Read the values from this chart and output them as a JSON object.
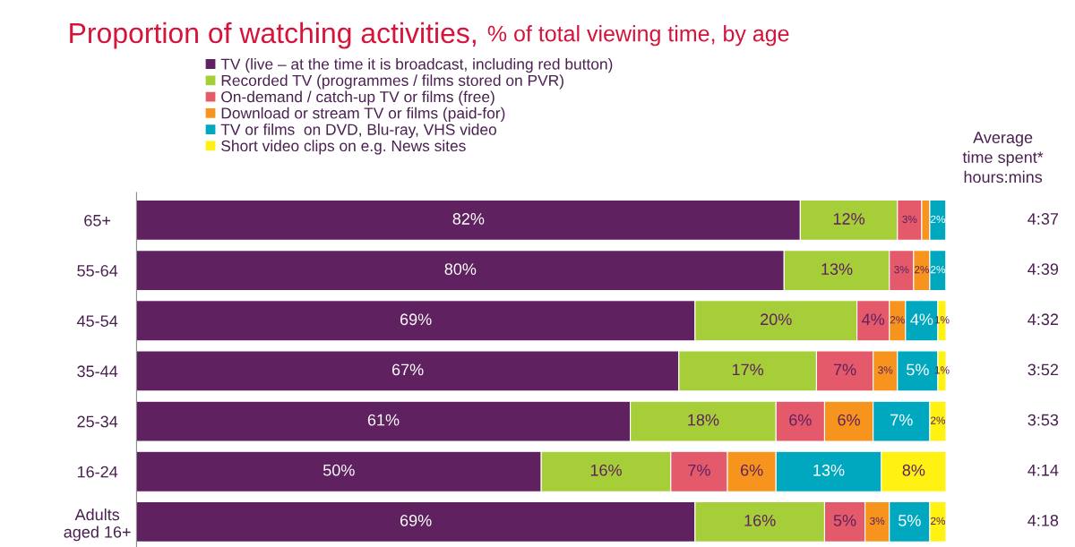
{
  "chart_data": {
    "type": "bar",
    "orientation": "horizontal",
    "stacked": true,
    "legend": "top",
    "grid": false,
    "tick_labels": "y",
    "title": "Proportion of watching activities,",
    "subtitle": "% of total viewing time, by age",
    "categories": [
      "65+",
      "55-64",
      "45-54",
      "35-44",
      "25-34",
      "16-24",
      "Adults\naged 16+"
    ],
    "series": [
      {
        "name": "TV (live – at the time it is broadcast, including red button)",
        "color": "#5f2160",
        "values": [
          82,
          80,
          69,
          67,
          61,
          50,
          69
        ],
        "value_labels": [
          "82%",
          "80%",
          "69%",
          "67%",
          "61%",
          "50%",
          "69%"
        ]
      },
      {
        "name": "Recorded TV (programmes / films stored on PVR)",
        "color": "#a6ce39",
        "values": [
          12,
          13,
          20,
          17,
          18,
          16,
          16
        ],
        "value_labels": [
          "12%",
          "13%",
          "20%",
          "17%",
          "18%",
          "16%",
          "16%"
        ]
      },
      {
        "name": "On-demand / catch-up TV or films (free)",
        "color": "#e45a6a",
        "values": [
          3,
          3,
          4,
          7,
          6,
          7,
          5
        ],
        "value_labels": [
          "3%",
          "3%",
          "4%",
          "7%",
          "6%",
          "7%",
          "5%"
        ]
      },
      {
        "name": "Download or stream TV or films (paid-for)",
        "color": "#f7941d",
        "values": [
          1,
          2,
          2,
          3,
          6,
          6,
          3
        ],
        "value_labels": [
          null,
          "2%",
          "2%",
          "3%",
          "6%",
          "6%",
          "3%"
        ]
      },
      {
        "name": "TV or films  on DVD, Blu-ray, VHS video",
        "color": "#00a8bf",
        "values": [
          2,
          2,
          4,
          5,
          7,
          13,
          5
        ],
        "value_labels": [
          "2%",
          "2%",
          "4%",
          "5%",
          "7%",
          "13%",
          "5%"
        ]
      },
      {
        "name": "Short video clips on e.g. News sites",
        "color": "#fff212",
        "values": [
          null,
          null,
          1,
          1,
          2,
          8,
          2
        ],
        "value_labels": [
          null,
          null,
          "1%",
          "1%",
          "2%",
          "8%",
          "2%"
        ]
      }
    ],
    "annotations": [
      "Average\ntime spent*\nhours:mins",
      "4:37",
      "4:39",
      "4:32",
      "3:52",
      "3:53",
      "4:14",
      "4:18"
    ]
  }
}
